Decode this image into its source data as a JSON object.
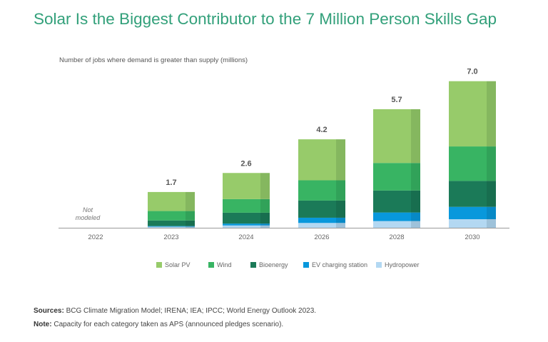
{
  "chart_data": {
    "type": "bar",
    "stacked": true,
    "title": "Solar Is the Biggest Contributor to the 7 Million Person Skills Gap",
    "subtitle": "Number of jobs where demand is greater than supply (millions)",
    "categories": [
      "2022",
      "2023",
      "2024",
      "2026",
      "2028",
      "2030"
    ],
    "totals": [
      "",
      "1.7",
      "2.6",
      "4.2",
      "5.7",
      "7.0"
    ],
    "not_modeled_label": "Not modeled",
    "ylim": [
      0,
      7.0
    ],
    "series": [
      {
        "name": "Hydropower",
        "color": "#b3d8f2",
        "values": [
          null,
          0.05,
          0.11,
          0.23,
          0.32,
          0.41
        ]
      },
      {
        "name": "EV charging station",
        "color": "#0898dc",
        "values": [
          null,
          0.03,
          0.09,
          0.25,
          0.41,
          0.59
        ]
      },
      {
        "name": "Bioenergy",
        "color": "#1b7a58",
        "values": [
          null,
          0.27,
          0.52,
          0.82,
          1.05,
          1.24
        ]
      },
      {
        "name": "Wind",
        "color": "#38b463",
        "values": [
          null,
          0.45,
          0.65,
          0.97,
          1.32,
          1.65
        ]
      },
      {
        "name": "Solar PV",
        "color": "#97cb6a",
        "values": [
          null,
          0.91,
          1.25,
          1.96,
          2.57,
          3.12
        ]
      }
    ],
    "legend_order": [
      "Solar PV",
      "Wind",
      "Bioenergy",
      "EV charging station",
      "Hydropower"
    ],
    "legend_placement": "bottom"
  },
  "footer": {
    "sources_label": "Sources:",
    "sources_text": " BCG Climate Migration Model; IRENA; IEA; IPCC; World Energy Outlook 2023.",
    "note_label": "Note:",
    "note_text": " Capacity for each category taken as APS (announced pledges scenario)."
  }
}
